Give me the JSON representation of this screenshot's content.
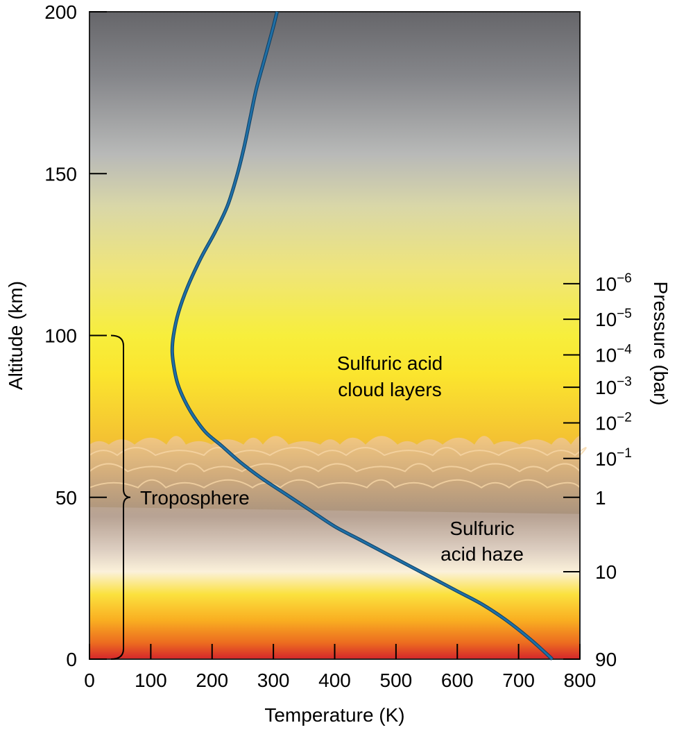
{
  "chart_data": {
    "type": "line",
    "xlabel": "Temperature (K)",
    "ylabel": "Altitude (km)",
    "y2label": "Pressure (bar)",
    "xlim": [
      0,
      800
    ],
    "ylim": [
      0,
      200
    ],
    "x_ticks": [
      "0",
      "100",
      "200",
      "300",
      "400",
      "500",
      "600",
      "700",
      "800"
    ],
    "y_ticks": [
      "0",
      "50",
      "100",
      "150",
      "200"
    ],
    "pressure_ticks": [
      {
        "altitude": 0,
        "base": "90",
        "exp": ""
      },
      {
        "altitude": 27,
        "base": "10",
        "exp": ""
      },
      {
        "altitude": 50,
        "base": "1",
        "exp": ""
      },
      {
        "altitude": 62,
        "base": "10",
        "exp": "−1"
      },
      {
        "altitude": 73,
        "base": "10",
        "exp": "−2"
      },
      {
        "altitude": 84,
        "base": "10",
        "exp": "−3"
      },
      {
        "altitude": 94,
        "base": "10",
        "exp": "−4"
      },
      {
        "altitude": 105,
        "base": "10",
        "exp": "−5"
      },
      {
        "altitude": 116,
        "base": "10",
        "exp": "−6"
      }
    ],
    "series": [
      {
        "color": "#1f6fa6",
        "x": [
          755,
          720,
          680,
          640,
          600,
          560,
          520,
          480,
          440,
          400,
          360,
          320,
          280,
          245,
          215,
          190,
          170,
          155,
          144,
          138,
          135,
          137,
          145,
          160,
          182,
          205,
          225,
          240,
          252,
          262,
          272,
          285,
          298,
          306
        ],
        "y": [
          0,
          6,
          12,
          17,
          21,
          25,
          29,
          33,
          37,
          41,
          46,
          51,
          56,
          61,
          66,
          70,
          75,
          80,
          85,
          90,
          95,
          100,
          107,
          115,
          124,
          132,
          140,
          149,
          158,
          167,
          176,
          185,
          194,
          200
        ]
      }
    ],
    "annotations": [
      {
        "text": "Troposphere",
        "range": [
          0,
          100
        ]
      },
      {
        "lines": [
          "Sulfuric acid",
          "cloud layers"
        ]
      },
      {
        "lines": [
          "Sulfuric",
          "acid haze"
        ]
      }
    ],
    "grid": false,
    "legend": "none"
  }
}
